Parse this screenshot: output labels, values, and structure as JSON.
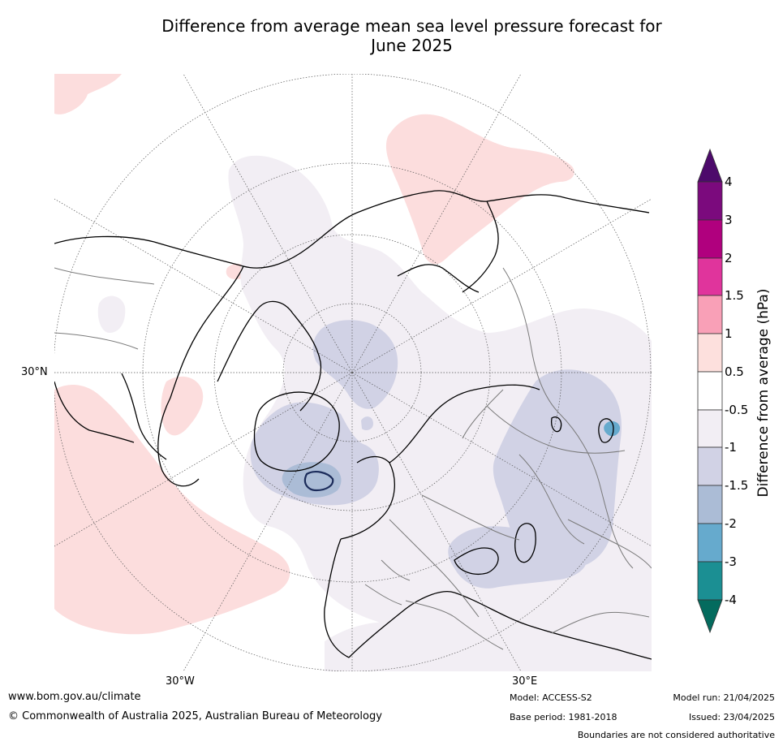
{
  "title": {
    "line1": "Difference from average mean sea level pressure forecast for",
    "line2": "June 2025"
  },
  "map": {
    "projection": "north-polar-stereographic",
    "graticule_labels": {
      "lat_left": "30°N",
      "lon_bottom_left": "30°W",
      "lon_bottom_right": "30°E"
    },
    "regions": [
      {
        "name": "Northeast Pacific / North America west",
        "anomaly_bin": "0.5 to 1",
        "color": "#fcdddd"
      },
      {
        "name": "Western Siberia / Arctic coast",
        "anomaly_bin": "0.5 to 1",
        "color": "#fcdddd"
      },
      {
        "name": "Northwest Atlantic off North America",
        "anomaly_bin": "0.5 to 1",
        "color": "#fcdddd"
      },
      {
        "name": "Greenland",
        "anomaly_bin": "-1.5 to -1",
        "color": "#d1d2e5"
      },
      {
        "name": "Arctic Ocean north of Svalbard",
        "anomaly_bin": "-1.5 to -1",
        "color": "#d1d2e5"
      },
      {
        "name": "North Atlantic south of Iceland",
        "anomaly_bin": "-2 to -1.5",
        "color": "#abbcd6"
      },
      {
        "name": "Central Asia",
        "anomaly_bin": "-1.5 to -1",
        "color": "#d1d2e5"
      },
      {
        "name": "Caspian / Black Sea region",
        "anomaly_bin": "-1.5 to -1",
        "color": "#d1d2e5"
      },
      {
        "name": "Lake Balkhash area",
        "anomaly_bin": "-3 to -2",
        "color": "#66aacd"
      },
      {
        "name": "Eurasia, Arctic, North Atlantic broad areas",
        "anomaly_bin": "-1 to -0.5",
        "color": "#f2eef4"
      }
    ]
  },
  "colorbar": {
    "title": "Difference from average (hPa)",
    "labels": [
      "4",
      "3",
      "2",
      "1.5",
      "1",
      "0.5",
      "-0.5",
      "-1",
      "-1.5",
      "-2",
      "-3",
      "-4"
    ],
    "colors": [
      "#7b0a7d",
      "#b0007e",
      "#e0349c",
      "#f9a0b7",
      "#fde0dd",
      "#ffffff",
      "#f2eef4",
      "#d1d2e5",
      "#abbcd6",
      "#66aacd",
      "#1b8f93"
    ],
    "extend_max_color": "#4d0a6b",
    "extend_min_color": "#046b5e"
  },
  "footer": {
    "site": "www.bom.gov.au/climate",
    "copyright": "© Commonwealth of Australia 2025, Australian Bureau of Meteorology",
    "model": "Model: ACCESS-S2",
    "base_period": "Base period: 1981-2018",
    "model_run": "Model run: 21/04/2025",
    "issued": "Issued: 23/04/2025",
    "boundaries": "Boundaries are not considered authoritative"
  }
}
